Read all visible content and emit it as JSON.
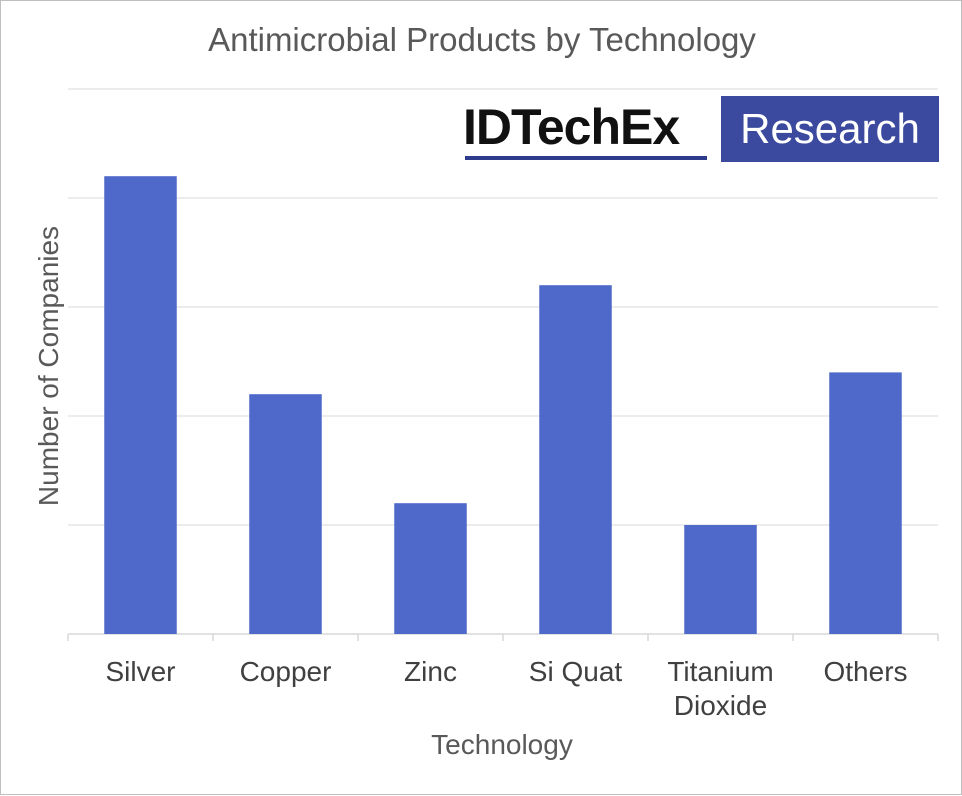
{
  "chart_data": {
    "type": "bar",
    "title": "Antimicrobial Products by Technology",
    "xlabel": "Technology",
    "ylabel": "Number of Companies",
    "categories": [
      "Silver",
      "Copper",
      "Zinc",
      "Si Quat",
      "Titanium Dioxide",
      "Others"
    ],
    "category_lines": [
      [
        "Silver"
      ],
      [
        "Copper"
      ],
      [
        "Zinc"
      ],
      [
        "Si Quat"
      ],
      [
        "Titanium",
        "Dioxide"
      ],
      [
        "Others"
      ]
    ],
    "values": [
      4.2,
      2.2,
      1.2,
      3.2,
      1.0,
      2.4
    ],
    "ylim": [
      0,
      5
    ],
    "y_tick_labels_shown": false,
    "grid": true,
    "bar_color": "#4e69c9",
    "grid_color": "#d9d9d9"
  },
  "logo": {
    "brand": "IDTechEx",
    "tag": "Research",
    "brand_color": "#3b4a9e"
  }
}
